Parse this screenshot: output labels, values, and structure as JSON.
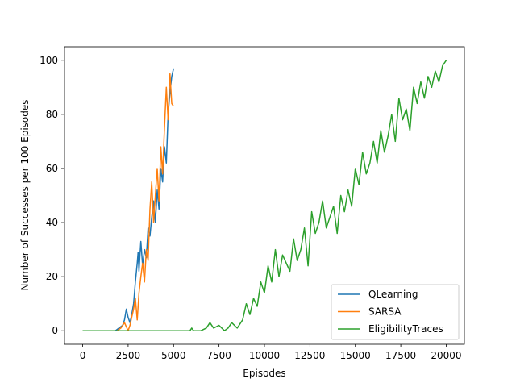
{
  "chart_data": {
    "type": "line",
    "title": "",
    "xlabel": "Episodes",
    "ylabel": "Number of Successes per 100 Episodes",
    "xlim": [
      -1000,
      21000
    ],
    "ylim": [
      -5,
      105
    ],
    "xticks": [
      0,
      2500,
      5000,
      7500,
      10000,
      12500,
      15000,
      17500,
      20000
    ],
    "yticks": [
      0,
      20,
      40,
      60,
      80,
      100
    ],
    "grid": false,
    "legend_position": "lower-right",
    "series": [
      {
        "name": "QLearning",
        "color": "#1f77b4",
        "x": [
          0,
          1800,
          2000,
          2200,
          2300,
          2400,
          2500,
          2600,
          2700,
          2800,
          2900,
          3000,
          3050,
          3100,
          3150,
          3200,
          3300,
          3400,
          3500,
          3600,
          3700,
          3800,
          3900,
          4000,
          4100,
          4200,
          4300,
          4400,
          4500,
          4600,
          4700,
          4800,
          4900,
          5000
        ],
        "y": [
          0,
          0,
          1,
          2,
          4,
          8,
          5,
          3,
          6,
          10,
          18,
          25,
          29,
          22,
          28,
          33,
          24,
          30,
          27,
          38,
          35,
          42,
          48,
          40,
          52,
          45,
          60,
          55,
          68,
          62,
          80,
          88,
          94,
          97
        ]
      },
      {
        "name": "SARSA",
        "color": "#ff7f0e",
        "x": [
          0,
          1900,
          2100,
          2300,
          2500,
          2600,
          2700,
          2800,
          2900,
          3000,
          3100,
          3200,
          3300,
          3400,
          3500,
          3600,
          3700,
          3800,
          3900,
          4000,
          4100,
          4200,
          4300,
          4400,
          4500,
          4600,
          4700,
          4800,
          4900,
          5000
        ],
        "y": [
          0,
          0,
          1,
          3,
          0,
          2,
          5,
          8,
          12,
          4,
          14,
          20,
          25,
          18,
          30,
          26,
          45,
          55,
          40,
          50,
          60,
          48,
          68,
          58,
          75,
          90,
          78,
          95,
          84,
          83
        ]
      },
      {
        "name": "EligibilityTraces",
        "color": "#2ca02c",
        "x": [
          0,
          5900,
          6000,
          6100,
          6500,
          6800,
          7000,
          7200,
          7500,
          7800,
          8000,
          8200,
          8500,
          8800,
          9000,
          9200,
          9400,
          9600,
          9800,
          10000,
          10200,
          10400,
          10600,
          10800,
          11000,
          11200,
          11400,
          11600,
          11800,
          12000,
          12200,
          12400,
          12600,
          12800,
          13000,
          13200,
          13400,
          13600,
          13800,
          14000,
          14200,
          14400,
          14600,
          14800,
          15000,
          15200,
          15400,
          15600,
          15800,
          16000,
          16200,
          16400,
          16600,
          16800,
          17000,
          17200,
          17400,
          17600,
          17800,
          18000,
          18200,
          18400,
          18600,
          18800,
          19000,
          19200,
          19400,
          19600,
          19800,
          20000
        ],
        "y": [
          0,
          0,
          1,
          0,
          0,
          1,
          3,
          1,
          2,
          0,
          1,
          3,
          1,
          4,
          10,
          6,
          12,
          9,
          18,
          14,
          24,
          18,
          30,
          20,
          28,
          25,
          22,
          34,
          26,
          30,
          38,
          24,
          44,
          36,
          40,
          48,
          38,
          42,
          46,
          36,
          50,
          44,
          52,
          46,
          60,
          54,
          66,
          58,
          62,
          70,
          62,
          74,
          66,
          72,
          80,
          70,
          86,
          78,
          82,
          74,
          90,
          84,
          92,
          86,
          94,
          90,
          96,
          92,
          98,
          100
        ]
      }
    ]
  }
}
